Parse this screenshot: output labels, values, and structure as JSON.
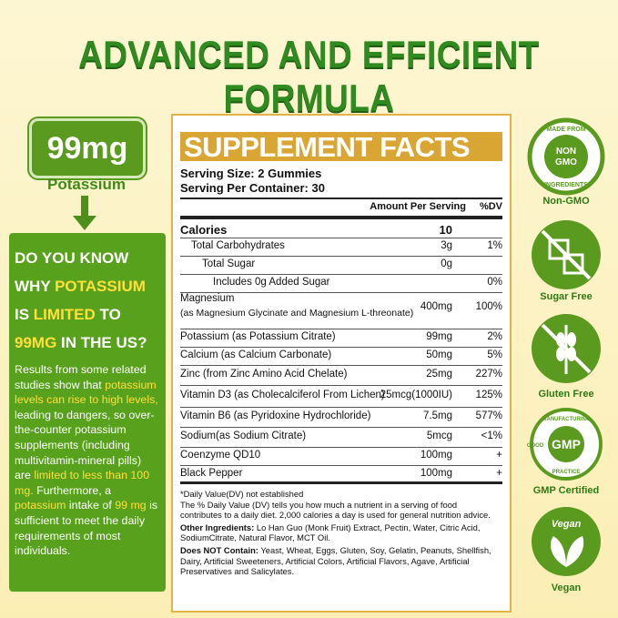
{
  "title": "ADVANCED AND EFFICIENT FORMULA",
  "badge": {
    "amount": "99mg",
    "label": "Potassium"
  },
  "question": [
    {
      "text": "DO YOU KNOW WHY ",
      "hl": false
    },
    {
      "text": "POTASSIUM",
      "hl": true
    },
    {
      "text": " IS ",
      "hl": false
    },
    {
      "text": "LIMITED",
      "hl": true
    },
    {
      "text": " TO ",
      "hl": false
    },
    {
      "text": "99MG",
      "hl": true
    },
    {
      "text": " IN THE US?",
      "hl": false
    }
  ],
  "body": [
    {
      "text": "Results from some related studies show that ",
      "hl": false
    },
    {
      "text": "potassium levels can rise to high levels,",
      "hl": true
    },
    {
      "text": " leading to dangers, so over-the-counter potassium supplements (including multivitamin-mineral pills) are ",
      "hl": false
    },
    {
      "text": "limited to less than 100 mg.",
      "hl": true
    },
    {
      "text": " Furthermore, a ",
      "hl": false
    },
    {
      "text": "potassium",
      "hl": true
    },
    {
      "text": " intake of ",
      "hl": false
    },
    {
      "text": "99 mg",
      "hl": true
    },
    {
      "text": " is sufficient to meet the daily requirements of most individuals.",
      "hl": false
    }
  ],
  "facts": {
    "title": "SUPPLEMENT FACTS",
    "serving_size": "Serving Size: 2 Gummies",
    "servings": "Serving Per Container: 30",
    "header": [
      "Amount Per Serving",
      "%DV"
    ],
    "rows": [
      {
        "name": "Calories",
        "amount": "10",
        "dv": ""
      },
      {
        "name": "Total Carbohydrates",
        "amount": "3g",
        "dv": "1%"
      },
      {
        "name": "Total Sugar",
        "amount": "0g",
        "dv": ""
      },
      {
        "name": "Includes 0g Added Sugar",
        "amount": "",
        "dv": "0%"
      },
      {
        "name": "Magnesium",
        "sub": "(as Magnesium Glycinate and Magnesium L-threonate)",
        "amount": "400mg",
        "dv": "100%"
      },
      {
        "name": "Potassium (as Potassium Citrate)",
        "amount": "99mg",
        "dv": "2%"
      },
      {
        "name": "Calcium (as Calcium Carbonate)",
        "amount": "50mg",
        "dv": "5%"
      },
      {
        "name": "Zinc (from Zinc Amino Acid Chelate)",
        "amount": "25mg",
        "dv": "227%"
      },
      {
        "name": "Vitamin D3 (as Cholecalciferol From Lichen)",
        "amount": "25mcg(1000IU)",
        "dv": "125%"
      },
      {
        "name": "Vitamin B6 (as Pyridoxine Hydrochloride)",
        "amount": "7.5mg",
        "dv": "577%"
      },
      {
        "name": "Sodium(as Sodium Citrate)",
        "amount": "5mcg",
        "dv": "<1%"
      },
      {
        "name": "Coenzyme QD10",
        "amount": "100mg",
        "dv": "+"
      },
      {
        "name": "Black Pepper",
        "amount": "100mg",
        "dv": "+"
      }
    ],
    "notes": [
      "*Daily Value(DV) not established",
      "The % Daily Value (DV) tells you how much a nutrient in a serving of food contributes to a daily diet. 2,000 calories a day is used for general nutrition advice."
    ],
    "other": {
      "label": "Other Ingredients:",
      "text": "Lo Han Guo (Monk Fruit) Extract, Pectin, Water, Citric Acid, SodiumCitrate, Natural Flavor, MCT Oil."
    },
    "not_contain": {
      "label": "Does NOT Contain:",
      "text": "Yeast, Wheat, Eggs, Gluten, Soy, Gelatin, Peanuts, Shellfish, Dairy, Artificial Sweeteners, Artificial Colors, Artificial Flavors, Agave, Artificial Preservatives and Salicylates."
    }
  },
  "icons": [
    {
      "top": "MADE FROM",
      "mid1": "NON",
      "mid2": "GMO",
      "bottom": "INGREDIENTS",
      "label": "Non-GMO"
    },
    {
      "label": "Sugar Free"
    },
    {
      "label": "Gluten Free"
    },
    {
      "top": "MANUFACTURING",
      "mid1": "GMP",
      "left": "GOOD",
      "bottom": "PRACTICE",
      "label": "GMP Certified"
    },
    {
      "mid1": "Vegan",
      "label": "Vegan"
    }
  ]
}
